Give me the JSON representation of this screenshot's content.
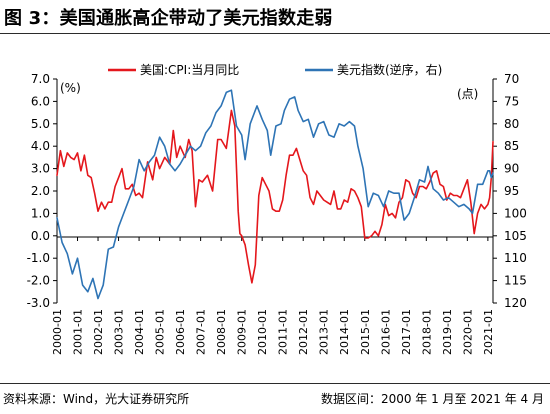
{
  "title": "图 3：美国通胀高企带动了美元指数走弱",
  "footer": {
    "source": "资料来源：Wind，光大证券研究所",
    "range": "数据区间：2000 年 1 月至 2021 年 4 月"
  },
  "colors": {
    "cpi": "#e4171c",
    "dxy": "#2e74b5",
    "axis": "#000000"
  },
  "chart_data": {
    "type": "line",
    "grid": false,
    "legend_position": "top",
    "x_range": [
      "2000-01",
      "2021-04"
    ],
    "x_ticks": [
      "2000-01",
      "2001-01",
      "2002-01",
      "2003-01",
      "2004-01",
      "2005-01",
      "2006-01",
      "2007-01",
      "2008-01",
      "2009-01",
      "2010-01",
      "2011-01",
      "2012-01",
      "2013-01",
      "2014-01",
      "2015-01",
      "2016-01",
      "2017-01",
      "2018-01",
      "2019-01",
      "2020-01",
      "2021-01"
    ],
    "left_axis": {
      "unit": "(%)",
      "ylim": [
        -3.0,
        7.0
      ],
      "ticks": [
        "7.0",
        "6.0",
        "5.0",
        "4.0",
        "3.0",
        "2.0",
        "1.0",
        "0.0",
        "-1.0",
        "-2.0",
        "-3.0"
      ]
    },
    "right_axis": {
      "unit": "(点)",
      "ylim": [
        70,
        120
      ],
      "reversed": true,
      "ticks": [
        "70",
        "75",
        "80",
        "85",
        "90",
        "95",
        "100",
        "105",
        "110",
        "115",
        "120"
      ]
    },
    "series": [
      {
        "name": "美国:CPI:当月同比",
        "axis": "left",
        "points": [
          [
            "2000-01",
            2.7
          ],
          [
            "2000-03",
            3.8
          ],
          [
            "2000-05",
            3.1
          ],
          [
            "2000-07",
            3.7
          ],
          [
            "2000-09",
            3.5
          ],
          [
            "2000-11",
            3.4
          ],
          [
            "2001-01",
            3.7
          ],
          [
            "2001-03",
            2.9
          ],
          [
            "2001-05",
            3.6
          ],
          [
            "2001-07",
            2.7
          ],
          [
            "2001-09",
            2.6
          ],
          [
            "2001-11",
            1.9
          ],
          [
            "2002-01",
            1.1
          ],
          [
            "2002-03",
            1.5
          ],
          [
            "2002-05",
            1.2
          ],
          [
            "2002-07",
            1.5
          ],
          [
            "2002-09",
            1.5
          ],
          [
            "2002-11",
            2.2
          ],
          [
            "2003-01",
            2.6
          ],
          [
            "2003-03",
            3.0
          ],
          [
            "2003-05",
            2.1
          ],
          [
            "2003-07",
            2.1
          ],
          [
            "2003-09",
            2.3
          ],
          [
            "2003-11",
            1.8
          ],
          [
            "2004-01",
            1.9
          ],
          [
            "2004-03",
            1.7
          ],
          [
            "2004-06",
            3.3
          ],
          [
            "2004-09",
            2.5
          ],
          [
            "2004-11",
            3.5
          ],
          [
            "2005-01",
            3.0
          ],
          [
            "2005-04",
            3.5
          ],
          [
            "2005-07",
            3.2
          ],
          [
            "2005-09",
            4.7
          ],
          [
            "2005-11",
            3.5
          ],
          [
            "2006-01",
            4.0
          ],
          [
            "2006-04",
            3.5
          ],
          [
            "2006-06",
            4.3
          ],
          [
            "2006-08",
            3.8
          ],
          [
            "2006-10",
            1.3
          ],
          [
            "2006-12",
            2.5
          ],
          [
            "2007-02",
            2.4
          ],
          [
            "2007-05",
            2.7
          ],
          [
            "2007-08",
            2.0
          ],
          [
            "2007-11",
            4.3
          ],
          [
            "2008-01",
            4.3
          ],
          [
            "2008-04",
            3.9
          ],
          [
            "2008-07",
            5.6
          ],
          [
            "2008-09",
            4.9
          ],
          [
            "2008-11",
            1.1
          ],
          [
            "2008-12",
            0.1
          ],
          [
            "2009-01",
            0.0
          ],
          [
            "2009-03",
            -0.4
          ],
          [
            "2009-05",
            -1.3
          ],
          [
            "2009-07",
            -2.1
          ],
          [
            "2009-09",
            -1.3
          ],
          [
            "2009-11",
            1.8
          ],
          [
            "2010-01",
            2.6
          ],
          [
            "2010-03",
            2.3
          ],
          [
            "2010-05",
            2.0
          ],
          [
            "2010-07",
            1.2
          ],
          [
            "2010-09",
            1.1
          ],
          [
            "2010-11",
            1.1
          ],
          [
            "2011-01",
            1.6
          ],
          [
            "2011-03",
            2.7
          ],
          [
            "2011-05",
            3.6
          ],
          [
            "2011-07",
            3.6
          ],
          [
            "2011-09",
            3.9
          ],
          [
            "2011-11",
            3.4
          ],
          [
            "2012-01",
            2.9
          ],
          [
            "2012-03",
            2.7
          ],
          [
            "2012-05",
            1.7
          ],
          [
            "2012-07",
            1.4
          ],
          [
            "2012-09",
            2.0
          ],
          [
            "2012-11",
            1.8
          ],
          [
            "2013-01",
            1.6
          ],
          [
            "2013-03",
            1.5
          ],
          [
            "2013-05",
            1.4
          ],
          [
            "2013-07",
            2.0
          ],
          [
            "2013-09",
            1.2
          ],
          [
            "2013-11",
            1.2
          ],
          [
            "2014-01",
            1.6
          ],
          [
            "2014-03",
            1.5
          ],
          [
            "2014-05",
            2.1
          ],
          [
            "2014-07",
            2.0
          ],
          [
            "2014-09",
            1.7
          ],
          [
            "2014-11",
            1.3
          ],
          [
            "2015-01",
            -0.1
          ],
          [
            "2015-03",
            -0.1
          ],
          [
            "2015-05",
            0.0
          ],
          [
            "2015-07",
            0.2
          ],
          [
            "2015-09",
            0.0
          ],
          [
            "2015-11",
            0.5
          ],
          [
            "2016-01",
            1.4
          ],
          [
            "2016-03",
            0.9
          ],
          [
            "2016-05",
            1.0
          ],
          [
            "2016-07",
            0.8
          ],
          [
            "2016-09",
            1.5
          ],
          [
            "2016-11",
            1.7
          ],
          [
            "2017-01",
            2.5
          ],
          [
            "2017-03",
            2.4
          ],
          [
            "2017-05",
            1.9
          ],
          [
            "2017-07",
            1.7
          ],
          [
            "2017-09",
            2.2
          ],
          [
            "2017-11",
            2.2
          ],
          [
            "2018-01",
            2.1
          ],
          [
            "2018-03",
            2.4
          ],
          [
            "2018-05",
            2.8
          ],
          [
            "2018-07",
            2.9
          ],
          [
            "2018-09",
            2.3
          ],
          [
            "2018-11",
            2.2
          ],
          [
            "2019-01",
            1.6
          ],
          [
            "2019-03",
            1.9
          ],
          [
            "2019-05",
            1.8
          ],
          [
            "2019-07",
            1.8
          ],
          [
            "2019-09",
            1.7
          ],
          [
            "2019-11",
            2.1
          ],
          [
            "2020-01",
            2.5
          ],
          [
            "2020-03",
            1.5
          ],
          [
            "2020-05",
            0.1
          ],
          [
            "2020-07",
            1.0
          ],
          [
            "2020-09",
            1.4
          ],
          [
            "2020-11",
            1.2
          ],
          [
            "2021-01",
            1.4
          ],
          [
            "2021-02",
            1.7
          ],
          [
            "2021-03",
            2.6
          ],
          [
            "2021-04",
            4.2
          ]
        ]
      },
      {
        "name": "美元指数(逆序，右)",
        "axis": "right",
        "points": [
          [
            "2000-01",
            101.0
          ],
          [
            "2000-04",
            106.5
          ],
          [
            "2000-07",
            109.0
          ],
          [
            "2000-10",
            113.5
          ],
          [
            "2001-01",
            110.0
          ],
          [
            "2001-04",
            116.0
          ],
          [
            "2001-07",
            117.5
          ],
          [
            "2001-10",
            114.5
          ],
          [
            "2002-01",
            119.0
          ],
          [
            "2002-04",
            116.0
          ],
          [
            "2002-07",
            108.0
          ],
          [
            "2002-10",
            107.5
          ],
          [
            "2003-01",
            103.0
          ],
          [
            "2003-04",
            100.0
          ],
          [
            "2003-07",
            97.0
          ],
          [
            "2003-10",
            94.0
          ],
          [
            "2004-01",
            88.0
          ],
          [
            "2004-04",
            90.5
          ],
          [
            "2004-07",
            88.5
          ],
          [
            "2004-10",
            87.0
          ],
          [
            "2005-01",
            83.0
          ],
          [
            "2005-04",
            85.0
          ],
          [
            "2005-07",
            89.0
          ],
          [
            "2005-10",
            90.5
          ],
          [
            "2006-01",
            89.0
          ],
          [
            "2006-04",
            87.0
          ],
          [
            "2006-07",
            85.0
          ],
          [
            "2006-10",
            86.0
          ],
          [
            "2007-01",
            85.0
          ],
          [
            "2007-04",
            82.0
          ],
          [
            "2007-07",
            80.5
          ],
          [
            "2007-10",
            77.5
          ],
          [
            "2008-01",
            76.0
          ],
          [
            "2008-04",
            73.0
          ],
          [
            "2008-07",
            72.5
          ],
          [
            "2008-10",
            80.5
          ],
          [
            "2009-01",
            82.5
          ],
          [
            "2009-03",
            88.0
          ],
          [
            "2009-06",
            80.0
          ],
          [
            "2009-10",
            76.0
          ],
          [
            "2010-01",
            79.0
          ],
          [
            "2010-04",
            81.5
          ],
          [
            "2010-06",
            87.0
          ],
          [
            "2010-09",
            80.5
          ],
          [
            "2010-12",
            80.0
          ],
          [
            "2011-02",
            77.0
          ],
          [
            "2011-05",
            74.5
          ],
          [
            "2011-08",
            74.0
          ],
          [
            "2011-10",
            77.0
          ],
          [
            "2012-01",
            79.5
          ],
          [
            "2012-04",
            79.0
          ],
          [
            "2012-07",
            83.0
          ],
          [
            "2012-10",
            80.0
          ],
          [
            "2013-01",
            79.5
          ],
          [
            "2013-04",
            82.5
          ],
          [
            "2013-07",
            83.0
          ],
          [
            "2013-10",
            80.0
          ],
          [
            "2014-01",
            80.5
          ],
          [
            "2014-04",
            79.5
          ],
          [
            "2014-07",
            80.5
          ],
          [
            "2014-09",
            85.0
          ],
          [
            "2014-12",
            90.0
          ],
          [
            "2015-03",
            98.5
          ],
          [
            "2015-06",
            95.5
          ],
          [
            "2015-09",
            96.0
          ],
          [
            "2015-12",
            98.5
          ],
          [
            "2016-03",
            95.0
          ],
          [
            "2016-06",
            95.5
          ],
          [
            "2016-09",
            95.5
          ],
          [
            "2016-12",
            101.5
          ],
          [
            "2017-03",
            100.0
          ],
          [
            "2017-06",
            96.5
          ],
          [
            "2017-09",
            92.5
          ],
          [
            "2017-12",
            93.0
          ],
          [
            "2018-02",
            89.5
          ],
          [
            "2018-05",
            94.5
          ],
          [
            "2018-08",
            95.5
          ],
          [
            "2018-11",
            97.0
          ],
          [
            "2019-02",
            96.5
          ],
          [
            "2019-05",
            97.5
          ],
          [
            "2019-08",
            98.5
          ],
          [
            "2019-11",
            98.0
          ],
          [
            "2020-02",
            99.0
          ],
          [
            "2020-04",
            100.0
          ],
          [
            "2020-07",
            93.5
          ],
          [
            "2020-10",
            93.5
          ],
          [
            "2021-01",
            90.5
          ],
          [
            "2021-02",
            90.5
          ],
          [
            "2021-03",
            92.0
          ],
          [
            "2021-04",
            91.0
          ]
        ]
      }
    ]
  }
}
